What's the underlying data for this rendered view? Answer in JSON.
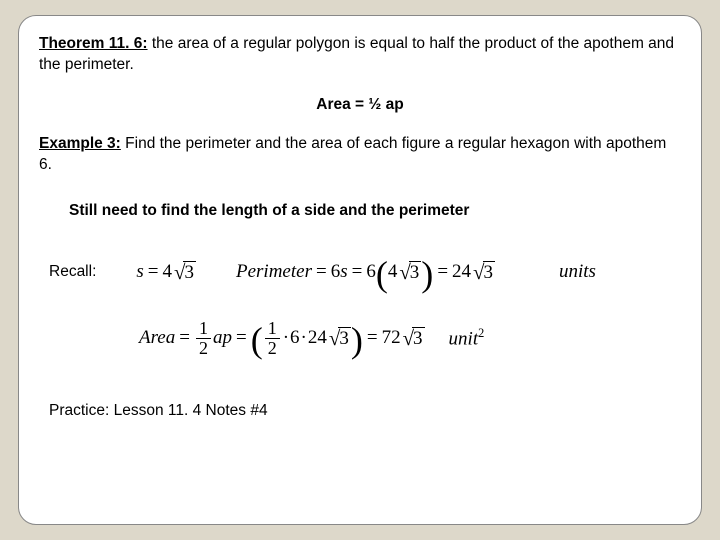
{
  "theorem": {
    "label": "Theorem 11. 6:",
    "text": " the area of a regular polygon is equal to half the product of the apothem and the perimeter."
  },
  "formula_center": "Area = ½ ap",
  "example": {
    "label": "Example 3:",
    "text": " Find the perimeter and the area of each figure a regular hexagon with apothem 6."
  },
  "still_need": "Still need to find the length of a side and the perimeter",
  "recall": {
    "label": "Recall:",
    "s_coef": "4",
    "s_rad": "3",
    "p_coef": "6",
    "p_inner_coef": "4",
    "p_inner_rad": "3",
    "p_result_coef": "24",
    "p_result_rad": "3",
    "units_label": "units"
  },
  "area": {
    "lhs": "Area",
    "frac_num": "1",
    "frac_den": "2",
    "vars": "ap",
    "inner_frac_num": "1",
    "inner_frac_den": "2",
    "inner_a": "6",
    "inner_p_coef": "24",
    "inner_p_rad": "3",
    "result_coef": "72",
    "result_rad": "3",
    "unit_label": "unit",
    "unit_exp": "2"
  },
  "practice": "Practice: Lesson 11. 4 Notes #4"
}
